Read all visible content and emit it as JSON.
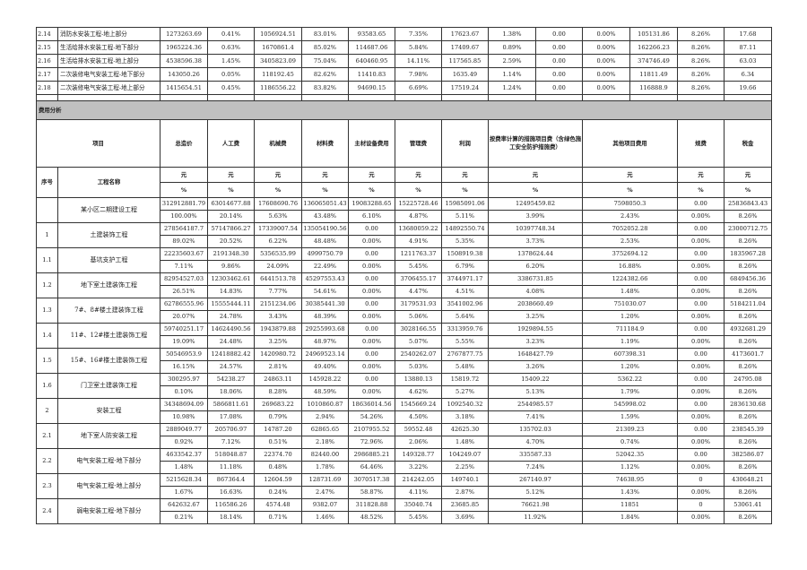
{
  "top_rows": [
    {
      "no": "2.14",
      "name": "消防水安装工程-地上部分",
      "values": [
        "1273263.69",
        "0.41%",
        "1056924.51",
        "83.01%",
        "93583.65",
        "7.35%",
        "17623.67",
        "1.38%",
        "0.00",
        "0.00%",
        "105131.86",
        "8.26%",
        "17.68"
      ]
    },
    {
      "no": "2.15",
      "name": "生活给排水安装工程-地下部分",
      "values": [
        "1965224.36",
        "0.63%",
        "1670861.4",
        "85.02%",
        "114687.06",
        "5.84%",
        "17409.67",
        "0.89%",
        "0.00",
        "0.00%",
        "162266.23",
        "8.26%",
        "87.11"
      ]
    },
    {
      "no": "2.16",
      "name": "生活给排水安装工程-地上部分",
      "values": [
        "4538596.38",
        "1.45%",
        "3405823.09",
        "75.04%",
        "640460.95",
        "14.11%",
        "117565.85",
        "2.59%",
        "0.00",
        "0.00%",
        "374746.49",
        "8.26%",
        "63.03"
      ]
    },
    {
      "no": "2.17",
      "name": "二次装修电气安装工程-地下部分",
      "values": [
        "143050.26",
        "0.05%",
        "118192.45",
        "82.62%",
        "11410.83",
        "7.98%",
        "1635.49",
        "1.14%",
        "0.00",
        "0.00%",
        "11811.49",
        "8.26%",
        "6.34"
      ]
    },
    {
      "no": "2.18",
      "name": "二次装修电气安装工程-地上部分",
      "values": [
        "1415654.51",
        "0.45%",
        "1186556.22",
        "83.82%",
        "94690.15",
        "6.69%",
        "17519.24",
        "1.24%",
        "0.00",
        "0.00%",
        "116888.9",
        "8.26%",
        "19.66"
      ]
    }
  ],
  "section_title": "费用分析",
  "header": {
    "item": "项目",
    "seq": "序号",
    "project_name": "工程名称",
    "columns": [
      "总造价",
      "人工费",
      "机械费",
      "材料费",
      "主材设备费用",
      "管理费",
      "利润",
      "按费率计算的措施项目费（含绿色施工安全防护措施费）",
      "其他项目费用",
      "规费",
      "税金"
    ],
    "unit_yuan": "元",
    "unit_pct": "%"
  },
  "groups": [
    {
      "no": "",
      "name": "某小区二期建设工程",
      "amounts": [
        "312912881.79",
        "63014677.88",
        "17608690.76",
        "136065051.43",
        "19083288.65",
        "15225728.46",
        "15985091.06",
        "12495459.82",
        "7598050.3",
        "0.00",
        "25836843.43"
      ],
      "percents": [
        "100.00%",
        "20.14%",
        "5.63%",
        "43.48%",
        "6.10%",
        "4.87%",
        "5.11%",
        "3.99%",
        "2.43%",
        "0.00%",
        "8.26%"
      ]
    },
    {
      "no": "1",
      "name": "土建装饰工程",
      "amounts": [
        "278564187.7",
        "57147866.27",
        "17339007.54",
        "135054190.56",
        "0.00",
        "13680059.22",
        "14892550.74",
        "10397748.34",
        "7052052.28",
        "0.00",
        "23000712.75"
      ],
      "percents": [
        "89.02%",
        "20.52%",
        "6.22%",
        "48.48%",
        "0.00%",
        "4.91%",
        "5.35%",
        "3.73%",
        "2.53%",
        "0.00%",
        "8.26%"
      ]
    },
    {
      "no": "1.1",
      "name": "基坑支护工程",
      "amounts": [
        "22235603.67",
        "2191348.30",
        "5356535.99",
        "4999750.79",
        "0.00",
        "1211763.37",
        "1508919.38",
        "1378624.44",
        "3752694.12",
        "0.00",
        "1835967.28"
      ],
      "percents": [
        "7.11%",
        "9.86%",
        "24.09%",
        "22.49%",
        "0.00%",
        "5.45%",
        "6.79%",
        "6.20%",
        "16.88%",
        "0.00%",
        "8.26%"
      ]
    },
    {
      "no": "1.2",
      "name": "地下室土建装饰工程",
      "amounts": [
        "82954527.03",
        "12303462.61",
        "6441513.78",
        "45297553.43",
        "0.00",
        "3706455.17",
        "3744971.17",
        "3386731.85",
        "1224382.66",
        "0.00",
        "6849456.36"
      ],
      "percents": [
        "26.51%",
        "14.83%",
        "7.77%",
        "54.61%",
        "0.00%",
        "4.47%",
        "4.51%",
        "4.08%",
        "1.48%",
        "0.00%",
        "8.26%"
      ]
    },
    {
      "no": "1.3",
      "name": "7#、8#楼土建装饰工程",
      "amounts": [
        "62786555.96",
        "15555444.11",
        "2151234.06",
        "30385441.30",
        "0.00",
        "3179531.93",
        "3541002.96",
        "2038660.49",
        "751030.07",
        "0.00",
        "5184211.04"
      ],
      "percents": [
        "20.07%",
        "24.78%",
        "3.43%",
        "48.39%",
        "0.00%",
        "5.06%",
        "5.64%",
        "3.25%",
        "1.20%",
        "0.00%",
        "8.26%"
      ]
    },
    {
      "no": "1.4",
      "name": "11#、12#楼土建装饰工程",
      "amounts": [
        "59740251.17",
        "14624490.56",
        "1943879.88",
        "29255993.68",
        "0.00",
        "3028166.55",
        "3313959.76",
        "1929894.55",
        "711184.9",
        "0.00",
        "4932681.29"
      ],
      "percents": [
        "19.09%",
        "24.48%",
        "3.25%",
        "48.97%",
        "0.00%",
        "5.07%",
        "5.55%",
        "3.23%",
        "1.19%",
        "0.00%",
        "8.26%"
      ]
    },
    {
      "no": "1.5",
      "name": "15#、16#楼土建装饰工程",
      "amounts": [
        "50546953.9",
        "12418882.42",
        "1420980.72",
        "24969523.14",
        "0.00",
        "2540262.07",
        "2767877.75",
        "1648427.79",
        "607398.31",
        "0.00",
        "4173601.7"
      ],
      "percents": [
        "16.15%",
        "24.57%",
        "2.81%",
        "49.40%",
        "0.00%",
        "5.03%",
        "5.48%",
        "3.26%",
        "1.20%",
        "0.00%",
        "8.26%"
      ]
    },
    {
      "no": "1.6",
      "name": "门卫室土建装饰工程",
      "amounts": [
        "300295.97",
        "54238.27",
        "24863.11",
        "145928.22",
        "0.00",
        "13880.13",
        "15819.72",
        "15409.22",
        "5362.22",
        "0.00",
        "24795.08"
      ],
      "percents": [
        "0.10%",
        "18.06%",
        "8.28%",
        "48.59%",
        "0.00%",
        "4.62%",
        "5.27%",
        "5.13%",
        "1.79%",
        "0.00%",
        "8.26%"
      ]
    },
    {
      "no": "2",
      "name": "安装工程",
      "amounts": [
        "34348694.09",
        "5866811.61",
        "269683.22",
        "1010860.87",
        "18636014.56",
        "1545669.24",
        "1092540.32",
        "2544985.57",
        "545998.02",
        "0.00",
        "2836130.68"
      ],
      "percents": [
        "10.98%",
        "17.08%",
        "0.79%",
        "2.94%",
        "54.26%",
        "4.50%",
        "3.18%",
        "7.41%",
        "1.59%",
        "0.00%",
        "8.26%"
      ]
    },
    {
      "no": "2.1",
      "name": "地下室人防安装工程",
      "amounts": [
        "2889049.77",
        "205706.97",
        "14787.20",
        "62865.65",
        "2107955.52",
        "59552.48",
        "42625.30",
        "135702.03",
        "21309.23",
        "0.00",
        "238545.39"
      ],
      "percents": [
        "0.92%",
        "7.12%",
        "0.51%",
        "2.18%",
        "72.96%",
        "2.06%",
        "1.48%",
        "4.70%",
        "0.74%",
        "0.00%",
        "8.26%"
      ]
    },
    {
      "no": "2.2",
      "name": "电气安装工程-地下部分",
      "amounts": [
        "4633542.37",
        "518048.87",
        "22374.70",
        "82440.00",
        "2986885.21",
        "149328.77",
        "104249.07",
        "335587.33",
        "52042.35",
        "0.00",
        "382586.07"
      ],
      "percents": [
        "1.48%",
        "11.18%",
        "0.48%",
        "1.78%",
        "64.46%",
        "3.22%",
        "2.25%",
        "7.24%",
        "1.12%",
        "0.00%",
        "8.26%"
      ]
    },
    {
      "no": "2.3",
      "name": "电气安装工程-地上部分",
      "amounts": [
        "5215628.34",
        "867364.4",
        "12604.59",
        "128731.69",
        "3070517.38",
        "214242.05",
        "149740.1",
        "267140.97",
        "74638.95",
        "0",
        "430648.21"
      ],
      "percents": [
        "1.67%",
        "16.63%",
        "0.24%",
        "2.47%",
        "58.87%",
        "4.11%",
        "2.87%",
        "5.12%",
        "1.43%",
        "0.00%",
        "8.26%"
      ]
    },
    {
      "no": "2.4",
      "name": "弱电安装工程-地下部分",
      "amounts": [
        "642632.67",
        "116586.26",
        "4574.48",
        "9382.07",
        "311828.88",
        "35040.74",
        "23685.85",
        "76621.98",
        "11851",
        "0",
        "53061.41"
      ],
      "percents": [
        "0.21%",
        "18.14%",
        "0.71%",
        "1.46%",
        "48.52%",
        "5.45%",
        "3.69%",
        "11.92%",
        "1.84%",
        "0.00%",
        "8.26%"
      ]
    }
  ]
}
